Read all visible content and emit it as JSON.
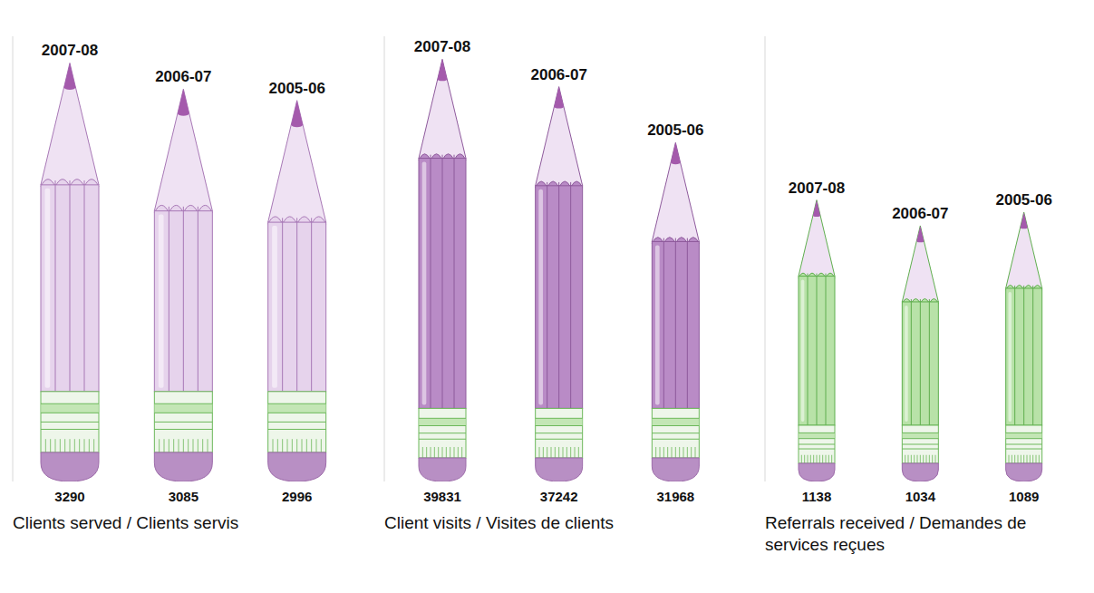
{
  "chart_data": [
    {
      "type": "bar",
      "title": "Clients served / Clients servis",
      "categories": [
        "2007-08",
        "2006-07",
        "2005-06"
      ],
      "values": [
        3290,
        3085,
        2996
      ],
      "color": "#e6d3ec",
      "ylim": [
        0,
        3500
      ],
      "data_labels": true,
      "tick_labels": "x"
    },
    {
      "type": "bar",
      "title": "Client visits / Visites de clients",
      "categories": [
        "2007-08",
        "2006-07",
        "2005-06"
      ],
      "values": [
        39831,
        37242,
        31968
      ],
      "color": "#b98bc6",
      "ylim": [
        0,
        42000
      ],
      "data_labels": true,
      "tick_labels": "x"
    },
    {
      "type": "bar",
      "title": "Referrals received / Demandes de services reçues",
      "categories": [
        "2007-08",
        "2006-07",
        "2005-06"
      ],
      "values": [
        1138,
        1034,
        1089
      ],
      "color": "#b8e2a8",
      "ylim": [
        0,
        1800
      ],
      "data_labels": true,
      "tick_labels": "x"
    }
  ]
}
